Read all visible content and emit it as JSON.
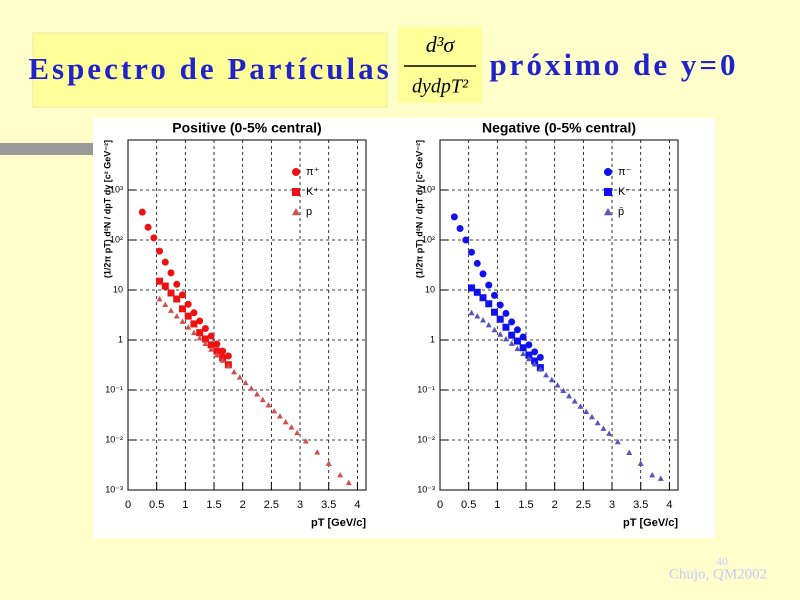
{
  "slide": {
    "title": "Espectro de Partículas",
    "formula_numerator": "d³σ",
    "formula_denominator": "dydpT²",
    "title_suffix": "próximo de y=0",
    "page_number": "40",
    "footer": "Chujo, QM2002"
  },
  "chart_data": [
    {
      "type": "scatter",
      "title": "Positive (0-5% central)",
      "x_label": "pT [GeV/c]",
      "y_label": "(1/2π pT) d²N / dpT dy [c² GeV⁻²]",
      "xlim": [
        0,
        4.15
      ],
      "xticks": [
        0,
        0.5,
        1,
        1.5,
        2,
        2.5,
        3,
        3.5,
        4
      ],
      "ylim": [
        0.001,
        10000
      ],
      "log_y": true,
      "grid": true,
      "legend": "upper right",
      "yticks": [
        {
          "value": 0.001,
          "label": "10⁻³"
        },
        {
          "value": 0.01,
          "label": "10⁻²"
        },
        {
          "value": 0.1,
          "label": "10⁻¹"
        },
        1,
        10,
        {
          "value": 100,
          "label": "10²"
        },
        {
          "value": 1000,
          "label": "10³"
        }
      ],
      "series": [
        {
          "name": "π⁺",
          "color": "#ee1111",
          "marker": "circle",
          "x": [
            0.25,
            0.35,
            0.45,
            0.55,
            0.65,
            0.75,
            0.85,
            0.95,
            1.05,
            1.15,
            1.25,
            1.35,
            1.45,
            1.55,
            1.65,
            1.75
          ],
          "values": [
            360,
            180,
            110,
            60,
            36,
            22,
            13,
            8,
            5.2,
            3.5,
            2.4,
            1.7,
            1.2,
            0.83,
            0.6,
            0.48
          ]
        },
        {
          "name": "K⁺",
          "color": "#ee1111",
          "marker": "square",
          "x": [
            0.55,
            0.65,
            0.75,
            0.85,
            0.95,
            1.05,
            1.15,
            1.25,
            1.35,
            1.45,
            1.55,
            1.65,
            1.75
          ],
          "values": [
            15,
            12,
            8.7,
            6.6,
            4.2,
            3.0,
            2.1,
            1.4,
            1.05,
            0.8,
            0.6,
            0.44,
            0.32
          ]
        },
        {
          "name": "p",
          "color": "#d05050",
          "marker": "triangle",
          "x": [
            0.55,
            0.65,
            0.75,
            0.85,
            0.95,
            1.05,
            1.15,
            1.25,
            1.35,
            1.45,
            1.55,
            1.65,
            1.75,
            1.85,
            1.95,
            2.05,
            2.15,
            2.25,
            2.35,
            2.45,
            2.55,
            2.65,
            2.75,
            2.85,
            2.95,
            3.1,
            3.3,
            3.5,
            3.7,
            3.85
          ],
          "values": [
            6.6,
            5.1,
            3.9,
            3.0,
            2.35,
            1.8,
            1.4,
            1.1,
            0.84,
            0.65,
            0.5,
            0.39,
            0.3,
            0.23,
            0.18,
            0.14,
            0.108,
            0.083,
            0.064,
            0.05,
            0.038,
            0.03,
            0.023,
            0.018,
            0.014,
            0.0095,
            0.0057,
            0.0034,
            0.002,
            0.0014
          ]
        }
      ]
    },
    {
      "type": "scatter",
      "title": "Negative (0-5% central)",
      "x_label": "pT [GeV/c]",
      "y_label": "(1/2π pT) d²N / dpT dy [c² GeV⁻²]",
      "xlim": [
        0,
        4.15
      ],
      "xticks": [
        0,
        0.5,
        1,
        1.5,
        2,
        2.5,
        3,
        3.5,
        4
      ],
      "ylim": [
        0.001,
        10000
      ],
      "log_y": true,
      "grid": true,
      "legend": "upper right",
      "yticks": [
        {
          "value": 0.001,
          "label": "10⁻³"
        },
        {
          "value": 0.01,
          "label": "10⁻²"
        },
        {
          "value": 0.1,
          "label": "10⁻¹"
        },
        1,
        10,
        {
          "value": 100,
          "label": "10²"
        },
        {
          "value": 1000,
          "label": "10³"
        }
      ],
      "series": [
        {
          "name": "π⁻",
          "color": "#1111ee",
          "marker": "circle",
          "x": [
            0.25,
            0.35,
            0.45,
            0.55,
            0.65,
            0.75,
            0.85,
            0.95,
            1.05,
            1.15,
            1.25,
            1.35,
            1.45,
            1.55,
            1.65,
            1.75
          ],
          "values": [
            290,
            170,
            100,
            57,
            34,
            21,
            12.5,
            7.8,
            5.0,
            3.4,
            2.3,
            1.6,
            1.15,
            0.8,
            0.58,
            0.45
          ]
        },
        {
          "name": "K⁻",
          "color": "#1111ee",
          "marker": "square",
          "x": [
            0.55,
            0.65,
            0.75,
            0.85,
            0.95,
            1.05,
            1.15,
            1.25,
            1.35,
            1.45,
            1.55,
            1.65,
            1.75
          ],
          "values": [
            11,
            9,
            7,
            5.3,
            3.6,
            2.6,
            1.8,
            1.25,
            0.95,
            0.7,
            0.5,
            0.38,
            0.28
          ]
        },
        {
          "name": "p̄",
          "color": "#5555bb",
          "marker": "triangle",
          "x": [
            0.55,
            0.65,
            0.75,
            0.85,
            0.95,
            1.05,
            1.15,
            1.25,
            1.35,
            1.45,
            1.55,
            1.65,
            1.75,
            1.85,
            1.95,
            2.05,
            2.15,
            2.25,
            2.35,
            2.45,
            2.55,
            2.65,
            2.75,
            2.85,
            2.95,
            3.1,
            3.3,
            3.5,
            3.7,
            3.85
          ],
          "values": [
            3.5,
            3.0,
            2.5,
            2.0,
            1.6,
            1.3,
            1.05,
            0.85,
            0.67,
            0.53,
            0.42,
            0.33,
            0.26,
            0.2,
            0.16,
            0.125,
            0.097,
            0.076,
            0.06,
            0.047,
            0.037,
            0.029,
            0.022,
            0.017,
            0.0135,
            0.0092,
            0.0056,
            0.0034,
            0.002,
            0.0017
          ]
        }
      ]
    }
  ]
}
